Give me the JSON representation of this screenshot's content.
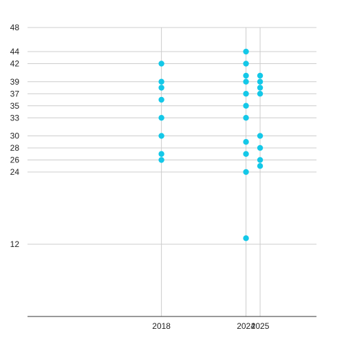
{
  "chart_data": {
    "type": "scatter",
    "title": "",
    "xlabel": "",
    "ylabel": "",
    "xlim": [
      2008.5,
      2029
    ],
    "ylim": [
      0,
      48
    ],
    "x_ticks": [
      2018,
      2024,
      2025
    ],
    "y_ticks": [
      12,
      24,
      26,
      28,
      30,
      33,
      35,
      37,
      39,
      42,
      44,
      48
    ],
    "grid": true,
    "color": "#14c8e8",
    "series": [
      {
        "points": [
          {
            "x": 2018,
            "y": 42
          },
          {
            "x": 2018,
            "y": 39
          },
          {
            "x": 2018,
            "y": 38
          },
          {
            "x": 2018,
            "y": 36
          },
          {
            "x": 2018,
            "y": 33
          },
          {
            "x": 2018,
            "y": 30
          },
          {
            "x": 2018,
            "y": 27
          },
          {
            "x": 2018,
            "y": 26
          },
          {
            "x": 2024,
            "y": 44
          },
          {
            "x": 2024,
            "y": 42
          },
          {
            "x": 2024,
            "y": 40
          },
          {
            "x": 2024,
            "y": 39
          },
          {
            "x": 2024,
            "y": 37
          },
          {
            "x": 2024,
            "y": 35
          },
          {
            "x": 2024,
            "y": 33
          },
          {
            "x": 2024,
            "y": 29
          },
          {
            "x": 2024,
            "y": 27
          },
          {
            "x": 2024,
            "y": 24
          },
          {
            "x": 2024,
            "y": 13
          },
          {
            "x": 2025,
            "y": 40
          },
          {
            "x": 2025,
            "y": 39
          },
          {
            "x": 2025,
            "y": 38
          },
          {
            "x": 2025,
            "y": 37
          },
          {
            "x": 2025,
            "y": 30
          },
          {
            "x": 2025,
            "y": 28
          },
          {
            "x": 2025,
            "y": 26
          },
          {
            "x": 2025,
            "y": 25
          }
        ]
      }
    ]
  }
}
